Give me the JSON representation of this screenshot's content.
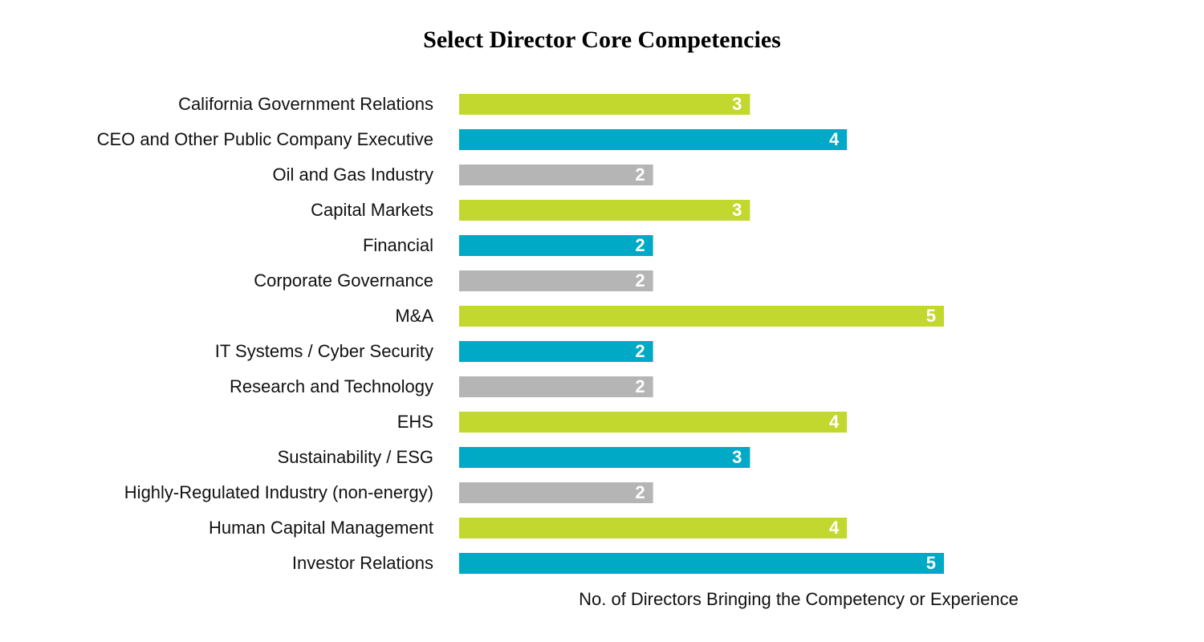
{
  "chart_data": {
    "type": "bar",
    "orientation": "horizontal",
    "title": "Select Director Core Competencies",
    "x_label": "No. of Directors Bringing the Competency or Experience",
    "categories": [
      "California Government Relations",
      "CEO and Other Public Company Executive",
      "Oil and Gas Industry",
      "Capital Markets",
      "Financial",
      "Corporate Governance",
      "M&A",
      "IT Systems / Cyber Security",
      "Research and Technology",
      "EHS",
      "Sustainability / ESG",
      "Highly-Regulated Industry (non-energy)",
      "Human Capital Management",
      "Investor Relations"
    ],
    "values": [
      3,
      4,
      2,
      3,
      2,
      2,
      5,
      2,
      2,
      4,
      3,
      2,
      4,
      5
    ],
    "colors": [
      "#c2d82f",
      "#00a9c6",
      "#b5b5b5",
      "#c2d82f",
      "#00a9c6",
      "#b5b5b5",
      "#c2d82f",
      "#00a9c6",
      "#b5b5b5",
      "#c2d82f",
      "#00a9c6",
      "#b5b5b5",
      "#c2d82f",
      "#00a9c6"
    ]
  }
}
